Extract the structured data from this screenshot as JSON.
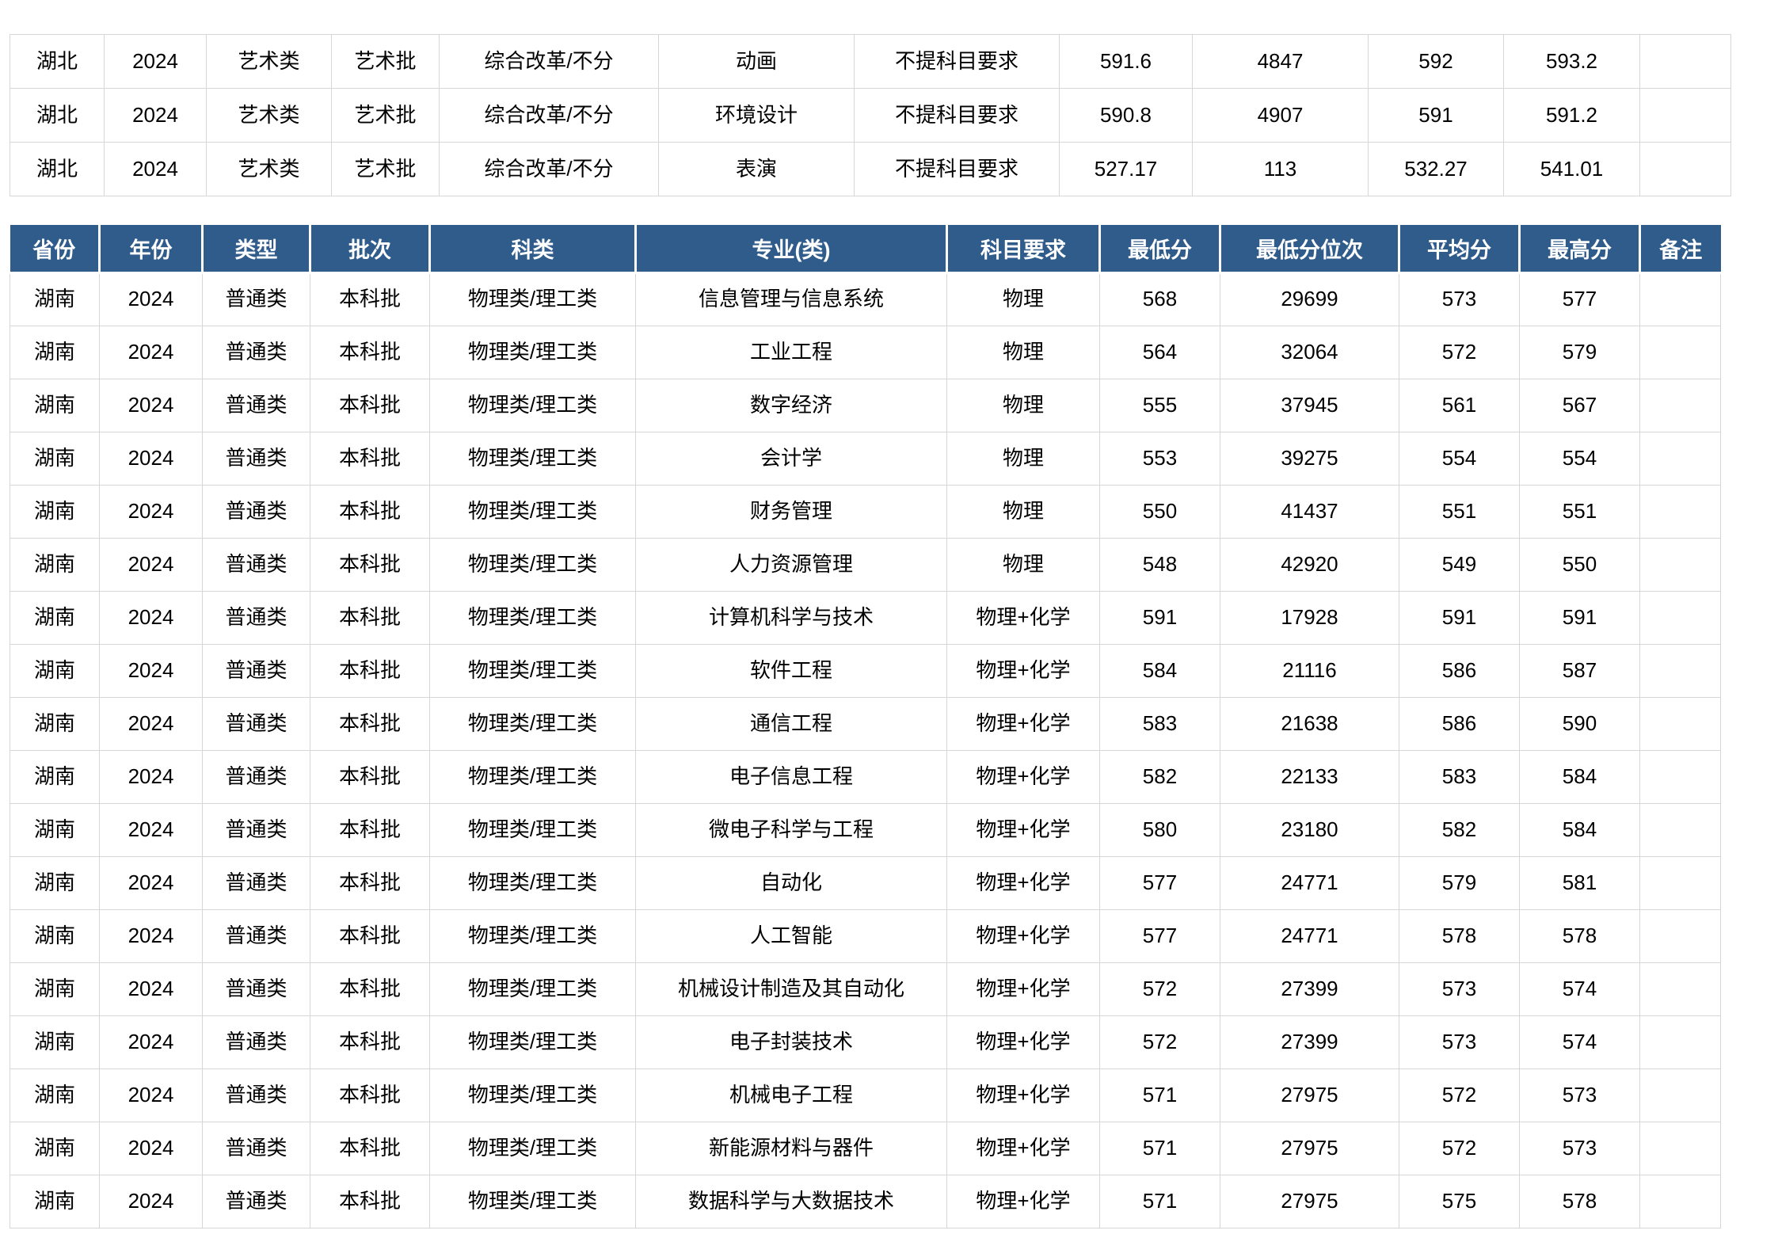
{
  "colors": {
    "page_bg": "#ffffff",
    "header_bg": "#305c8c",
    "header_text": "#ffffff",
    "grid_line": "#d6d6d6",
    "body_text": "#000000"
  },
  "top_table": {
    "rows": [
      [
        "湖北",
        "2024",
        "艺术类",
        "艺术批",
        "综合改革/不分",
        "动画",
        "不提科目要求",
        "591.6",
        "4847",
        "592",
        "593.2",
        ""
      ],
      [
        "湖北",
        "2024",
        "艺术类",
        "艺术批",
        "综合改革/不分",
        "环境设计",
        "不提科目要求",
        "590.8",
        "4907",
        "591",
        "591.2",
        ""
      ],
      [
        "湖北",
        "2024",
        "艺术类",
        "艺术批",
        "综合改革/不分",
        "表演",
        "不提科目要求",
        "527.17",
        "113",
        "532.27",
        "541.01",
        ""
      ]
    ]
  },
  "main_table": {
    "headers": [
      "省份",
      "年份",
      "类型",
      "批次",
      "科类",
      "专业(类)",
      "科目要求",
      "最低分",
      "最低分位次",
      "平均分",
      "最高分",
      "备注"
    ],
    "rows": [
      [
        "湖南",
        "2024",
        "普通类",
        "本科批",
        "物理类/理工类",
        "信息管理与信息系统",
        "物理",
        "568",
        "29699",
        "573",
        "577",
        ""
      ],
      [
        "湖南",
        "2024",
        "普通类",
        "本科批",
        "物理类/理工类",
        "工业工程",
        "物理",
        "564",
        "32064",
        "572",
        "579",
        ""
      ],
      [
        "湖南",
        "2024",
        "普通类",
        "本科批",
        "物理类/理工类",
        "数字经济",
        "物理",
        "555",
        "37945",
        "561",
        "567",
        ""
      ],
      [
        "湖南",
        "2024",
        "普通类",
        "本科批",
        "物理类/理工类",
        "会计学",
        "物理",
        "553",
        "39275",
        "554",
        "554",
        ""
      ],
      [
        "湖南",
        "2024",
        "普通类",
        "本科批",
        "物理类/理工类",
        "财务管理",
        "物理",
        "550",
        "41437",
        "551",
        "551",
        ""
      ],
      [
        "湖南",
        "2024",
        "普通类",
        "本科批",
        "物理类/理工类",
        "人力资源管理",
        "物理",
        "548",
        "42920",
        "549",
        "550",
        ""
      ],
      [
        "湖南",
        "2024",
        "普通类",
        "本科批",
        "物理类/理工类",
        "计算机科学与技术",
        "物理+化学",
        "591",
        "17928",
        "591",
        "591",
        ""
      ],
      [
        "湖南",
        "2024",
        "普通类",
        "本科批",
        "物理类/理工类",
        "软件工程",
        "物理+化学",
        "584",
        "21116",
        "586",
        "587",
        ""
      ],
      [
        "湖南",
        "2024",
        "普通类",
        "本科批",
        "物理类/理工类",
        "通信工程",
        "物理+化学",
        "583",
        "21638",
        "586",
        "590",
        ""
      ],
      [
        "湖南",
        "2024",
        "普通类",
        "本科批",
        "物理类/理工类",
        "电子信息工程",
        "物理+化学",
        "582",
        "22133",
        "583",
        "584",
        ""
      ],
      [
        "湖南",
        "2024",
        "普通类",
        "本科批",
        "物理类/理工类",
        "微电子科学与工程",
        "物理+化学",
        "580",
        "23180",
        "582",
        "584",
        ""
      ],
      [
        "湖南",
        "2024",
        "普通类",
        "本科批",
        "物理类/理工类",
        "自动化",
        "物理+化学",
        "577",
        "24771",
        "579",
        "581",
        ""
      ],
      [
        "湖南",
        "2024",
        "普通类",
        "本科批",
        "物理类/理工类",
        "人工智能",
        "物理+化学",
        "577",
        "24771",
        "578",
        "578",
        ""
      ],
      [
        "湖南",
        "2024",
        "普通类",
        "本科批",
        "物理类/理工类",
        "机械设计制造及其自动化",
        "物理+化学",
        "572",
        "27399",
        "573",
        "574",
        ""
      ],
      [
        "湖南",
        "2024",
        "普通类",
        "本科批",
        "物理类/理工类",
        "电子封装技术",
        "物理+化学",
        "572",
        "27399",
        "573",
        "574",
        ""
      ],
      [
        "湖南",
        "2024",
        "普通类",
        "本科批",
        "物理类/理工类",
        "机械电子工程",
        "物理+化学",
        "571",
        "27975",
        "572",
        "573",
        ""
      ],
      [
        "湖南",
        "2024",
        "普通类",
        "本科批",
        "物理类/理工类",
        "新能源材料与器件",
        "物理+化学",
        "571",
        "27975",
        "572",
        "573",
        ""
      ],
      [
        "湖南",
        "2024",
        "普通类",
        "本科批",
        "物理类/理工类",
        "数据科学与大数据技术",
        "物理+化学",
        "571",
        "27975",
        "575",
        "578",
        ""
      ]
    ]
  }
}
